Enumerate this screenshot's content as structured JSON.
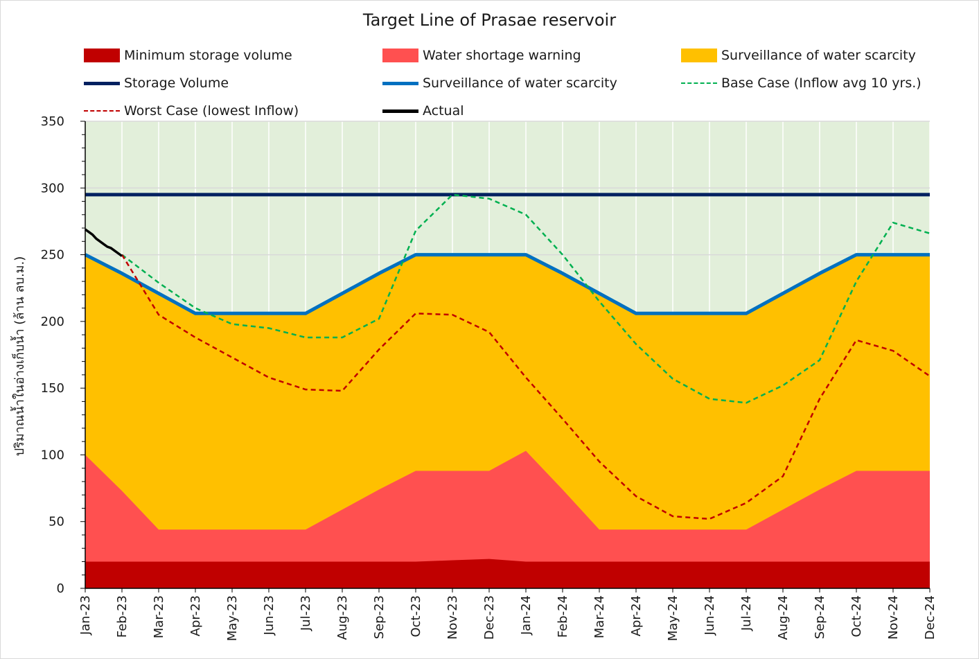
{
  "chart_data": {
    "type": "area",
    "title": "Target Line of Prasae reservoir",
    "ylabel": "ปริมาณน้ำในอ่างเก็บน้ำ (ล้าน ลบ.ม.)",
    "xlabel": "",
    "ylim": [
      0,
      350
    ],
    "yticks": [
      0,
      50,
      100,
      150,
      200,
      250,
      300,
      350
    ],
    "grid": true,
    "categories": [
      "Jan-23",
      "Feb-23",
      "Mar-23",
      "Apr-23",
      "May-23",
      "Jun-23",
      "Jul-23",
      "Aug-23",
      "Sep-23",
      "Oct-23",
      "Nov-23",
      "Dec-23",
      "Jan-24",
      "Feb-24",
      "Mar-24",
      "Apr-24",
      "May-24",
      "Jun-24",
      "Jul-24",
      "Aug-24",
      "Sep-24",
      "Oct-24",
      "Nov-24",
      "Dec-24"
    ],
    "areas": [
      {
        "name": "Minimum storage volume",
        "color": "#C00000",
        "values": [
          20,
          20,
          20,
          20,
          20,
          20,
          20,
          20,
          20,
          20,
          21,
          22,
          20,
          20,
          20,
          20,
          20,
          20,
          20,
          20,
          20,
          20,
          20,
          20
        ]
      },
      {
        "name": "Water shortage warning",
        "color": "#FF5050",
        "values": [
          100,
          73,
          44,
          44,
          44,
          44,
          44,
          59,
          74,
          88,
          88,
          88,
          103,
          74,
          44,
          44,
          44,
          44,
          44,
          59,
          74,
          88,
          88,
          88
        ]
      },
      {
        "name": "Surveillance of water scarcity",
        "color": "#FFC000",
        "values": [
          250,
          236,
          221,
          206,
          206,
          206,
          206,
          221,
          236,
          250,
          250,
          250,
          250,
          236,
          221,
          206,
          206,
          206,
          206,
          221,
          236,
          250,
          250,
          250
        ]
      }
    ],
    "series": [
      {
        "name": "Storage Volume",
        "color": "#002060",
        "style": "solid",
        "values": [
          295,
          295,
          295,
          295,
          295,
          295,
          295,
          295,
          295,
          295,
          295,
          295,
          295,
          295,
          295,
          295,
          295,
          295,
          295,
          295,
          295,
          295,
          295,
          295
        ]
      },
      {
        "name": "Surveillance of water scarcity",
        "color": "#0070C0",
        "style": "solid",
        "values": [
          250,
          236,
          221,
          206,
          206,
          206,
          206,
          221,
          236,
          250,
          250,
          250,
          250,
          236,
          221,
          206,
          206,
          206,
          206,
          221,
          236,
          250,
          250,
          250
        ]
      },
      {
        "name": "Base Case (Inflow avg 10 yrs.)",
        "color": "#00B050",
        "style": "dashed",
        "values": [
          null,
          250,
          229,
          210,
          198,
          195,
          188,
          188,
          202,
          268,
          295,
          292,
          280,
          250,
          215,
          183,
          157,
          142,
          139,
          152,
          171,
          230,
          274,
          266
        ]
      },
      {
        "name": "Worst Case (lowest Inflow)",
        "color": "#C00000",
        "style": "dashed",
        "values": [
          null,
          250,
          205,
          188,
          173,
          158,
          149,
          148,
          179,
          206,
          205,
          192,
          158,
          127,
          95,
          69,
          54,
          52,
          64,
          84,
          142,
          186,
          178,
          159
        ]
      },
      {
        "name": "Actual",
        "color": "#000000",
        "style": "solid",
        "x": [
          0,
          0.1,
          0.2,
          0.3,
          0.4,
          0.5,
          0.6,
          0.7,
          0.8,
          0.9,
          1.0
        ],
        "values": [
          269,
          267,
          265,
          262,
          260,
          258,
          256,
          255,
          253,
          251,
          249
        ]
      }
    ],
    "background_zone": {
      "color": "#E2EFDA"
    }
  },
  "legend": [
    {
      "label": "Minimum storage volume",
      "kind": "box",
      "color": "#C00000"
    },
    {
      "label": "Water shortage warning",
      "kind": "box",
      "color": "#FF5050"
    },
    {
      "label": "Surveillance of water scarcity",
      "kind": "box",
      "color": "#FFC000"
    },
    {
      "label": "Storage Volume",
      "kind": "line",
      "color": "#002060"
    },
    {
      "label": "Surveillance of water scarcity",
      "kind": "line",
      "color": "#0070C0"
    },
    {
      "label": "Base Case (Inflow avg 10 yrs.)",
      "kind": "dash",
      "color": "#00B050"
    },
    {
      "label": "Worst Case (lowest Inflow)",
      "kind": "dash",
      "color": "#C00000"
    },
    {
      "label": "Actual",
      "kind": "line",
      "color": "#000000"
    }
  ]
}
